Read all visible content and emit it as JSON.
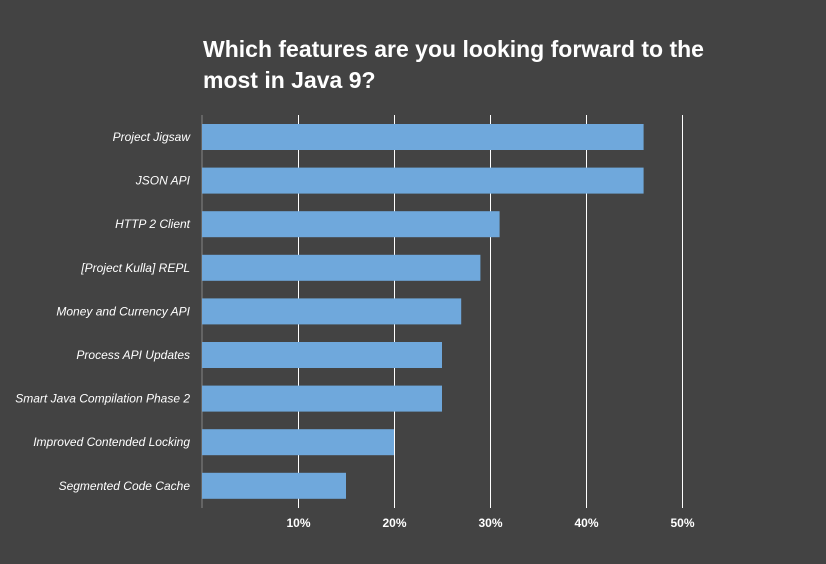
{
  "chart_data": {
    "type": "bar",
    "orientation": "horizontal",
    "title": "Which features are you looking forward to the most in Java 9?",
    "xlabel": "",
    "ylabel": "",
    "categories": [
      "Project Jigsaw",
      "JSON API",
      "HTTP 2 Client",
      "[Project Kulla] REPL",
      "Money and Currency API",
      "Process API Updates",
      "Smart Java Compilation Phase 2",
      "Improved Contended Locking",
      "Segmented Code Cache"
    ],
    "values": [
      46,
      46,
      31,
      29,
      27,
      25,
      25,
      20,
      15
    ],
    "xlim": [
      0,
      50
    ],
    "x_ticks": [
      10,
      20,
      30,
      40,
      50
    ],
    "x_tick_labels": [
      "10%",
      "20%",
      "30%",
      "40%",
      "50%"
    ],
    "grid": true,
    "legend": "none",
    "colors": {
      "background": "#434343",
      "bar": "#6fa8dc",
      "grid": "#ffffff",
      "text": "#ffffff"
    }
  }
}
